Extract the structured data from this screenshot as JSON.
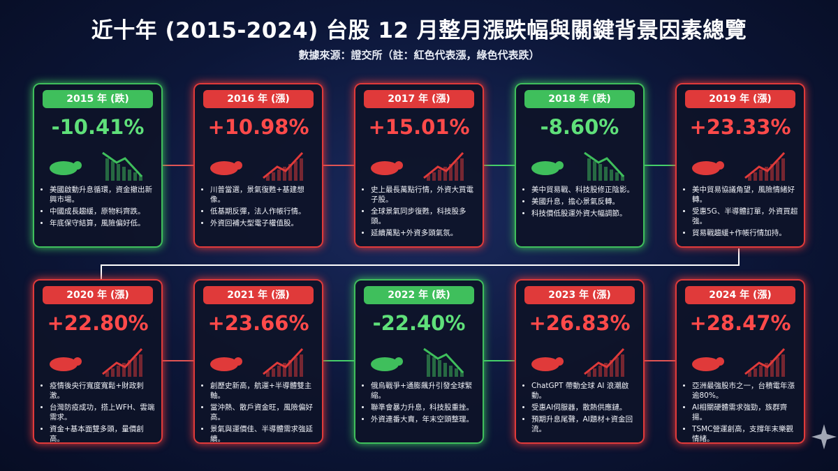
{
  "header": {
    "title": "近十年 (2015-2024) 台股 12 月整月漲跌幅與關鍵背景因素總覽",
    "subtitle": "數據來源：證交所（註：紅色代表漲，綠色代表跌）"
  },
  "cards": [
    {
      "year": "2015 年 (跌)",
      "change": "-10.41%",
      "color": "#3fbf5c",
      "bullets": [
        "美國啟動升息循環，資金撤出新興市場。",
        "中國成長趨緩，原物料齊跌。",
        "年底保守結算，風險偏好低。"
      ]
    },
    {
      "year": "2016 年 (漲)",
      "change": "+10.98%",
      "color": "#e03a3a",
      "bullets": [
        "川普當選，景氣復甦+基建想像。",
        "低基期反彈，法人作帳行情。",
        "外資回補大型電子權值股。"
      ]
    },
    {
      "year": "2017 年 (漲)",
      "change": "+15.01%",
      "color": "#e03a3a",
      "bullets": [
        "史上最長萬點行情，外資大買電子股。",
        "全球景氣同步復甦，科技股多頭。",
        "延續萬點+外資多頭氣氛。"
      ]
    },
    {
      "year": "2018 年 (跌)",
      "change": "-8.60%",
      "color": "#3fbf5c",
      "bullets": [
        "美中貿易戰、科技股修正陰影。",
        "美國升息，擔心景氣反轉。",
        "科技價低股運外資大幅調節。"
      ]
    },
    {
      "year": "2019 年 (漲)",
      "change": "+23.33%",
      "color": "#e03a3a",
      "bullets": [
        "美中貿易協議角望，風險情緒好轉。",
        "受惠5G、半導體訂單，外資買超強。",
        "貿易戰趨緩+作帳行情加持。"
      ]
    },
    {
      "year": "2020 年 (漲)",
      "change": "+22.80%",
      "color": "#e03a3a",
      "bullets": [
        "疫情後央行寬度寬鬆+財政刺激。",
        "台灣防疫成功，搭上WFH、雲端需求。",
        "資金+基本面雙多頭，量價創高。"
      ]
    },
    {
      "year": "2021 年 (漲)",
      "change": "+23.66%",
      "color": "#e03a3a",
      "bullets": [
        "創歷史新高，航運+半導體雙主軸。",
        "當沖熱、散戶資金旺，風險偏好高。",
        "景氣與運價佳、半導體需求強延續。"
      ]
    },
    {
      "year": "2022 年 (跌)",
      "change": "-22.40%",
      "color": "#3fbf5c",
      "bullets": [
        "俄烏戰爭+通膨飆升引發全球緊縮。",
        "聯準會暴力升息，科技股重挫。",
        "外資連番大賣，年末空頭整理。"
      ]
    },
    {
      "year": "2023 年 (漲)",
      "change": "+26.83%",
      "color": "#e03a3a",
      "bullets": [
        "ChatGPT 帶動全球 AI 浪潮啟動。",
        "受惠AI伺服器，散熱供應鏈。",
        "預期升息尾聲，AI題材+資金回流。"
      ]
    },
    {
      "year": "2024 年 (漲)",
      "change": "+28.47%",
      "color": "#e03a3a",
      "bullets": [
        "亞洲最強股市之一，台積電年漲逾80%。",
        "AI相關硬體需求強勁，族群齊揚。",
        "TSMC營運創高，支撐年末樂觀情緒。"
      ]
    }
  ]
}
